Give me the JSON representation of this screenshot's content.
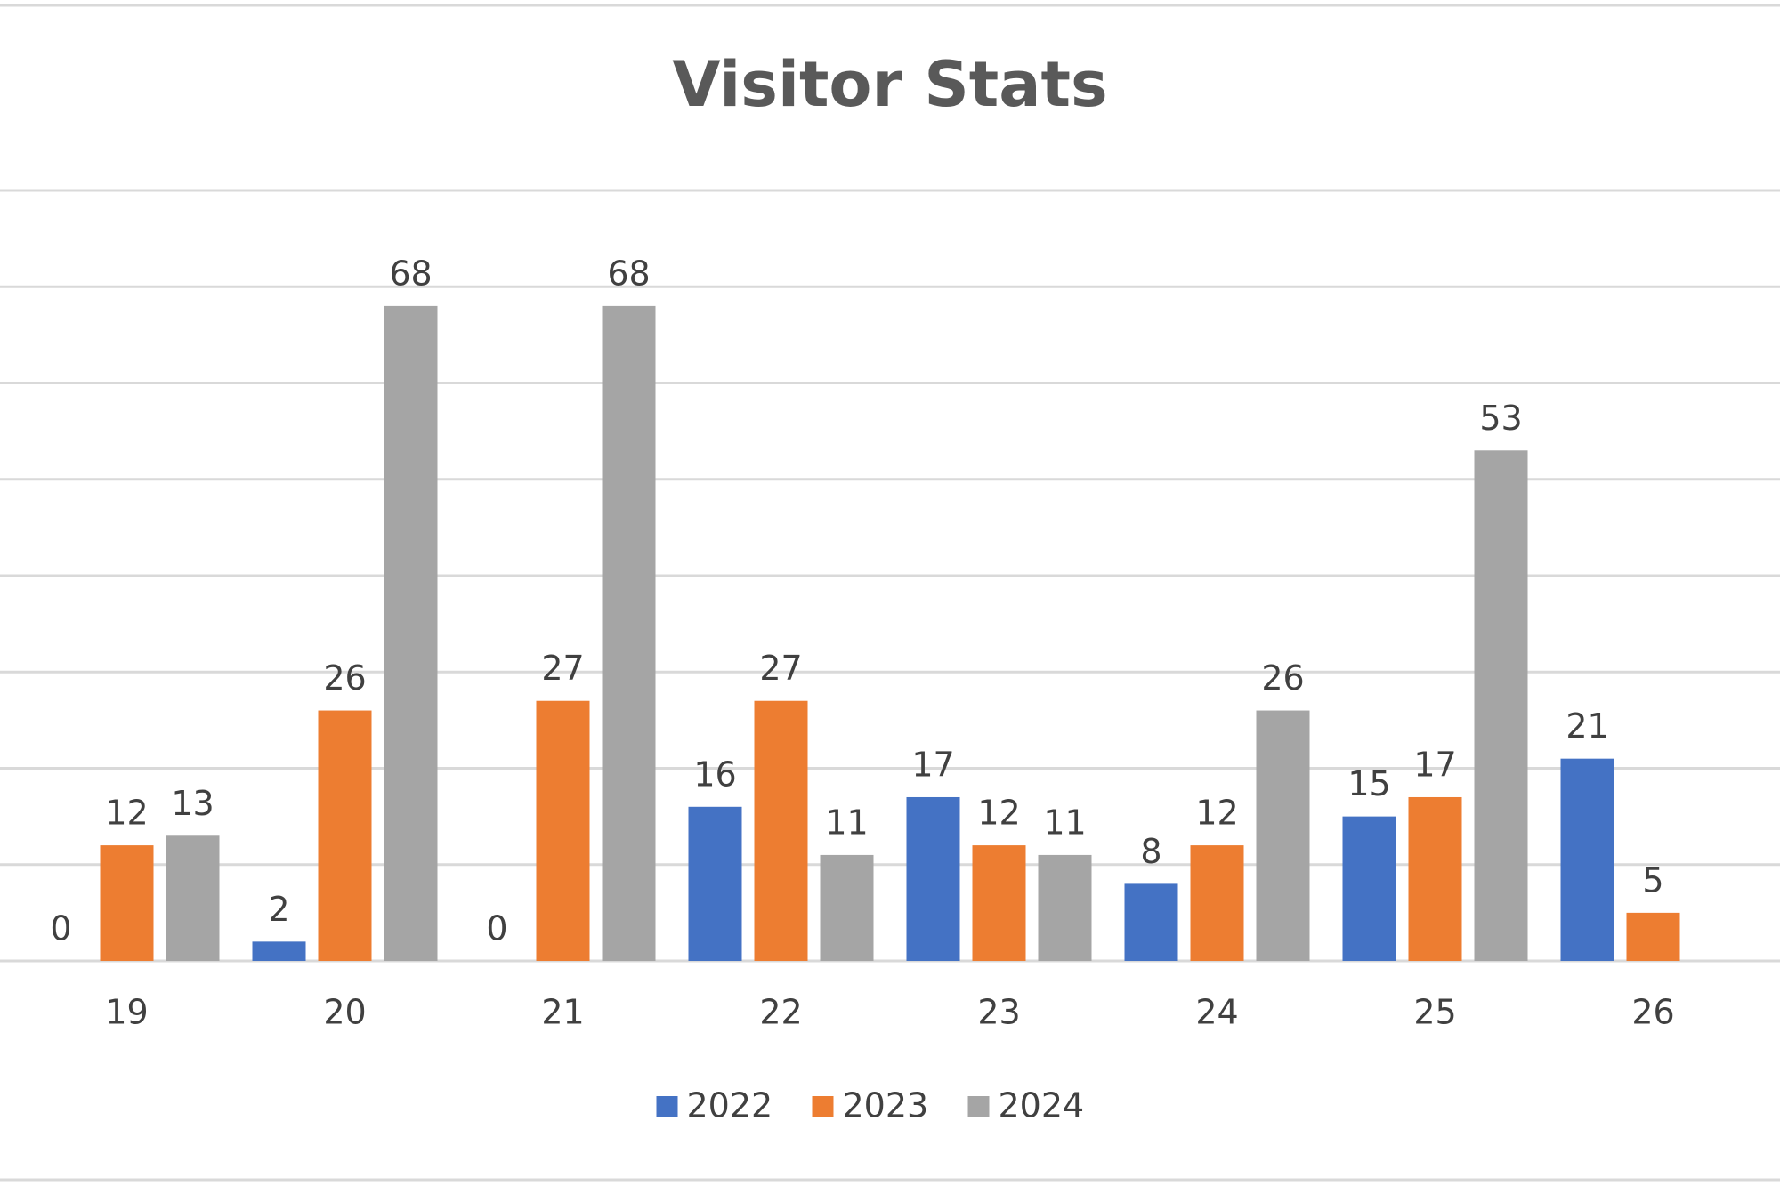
{
  "chart_data": {
    "type": "bar",
    "title": "Visitor Stats",
    "categories": [
      "19",
      "20",
      "21",
      "22",
      "23",
      "24",
      "25",
      "26"
    ],
    "series": [
      {
        "name": "2022",
        "color": "#4472c4",
        "values": [
          0,
          2,
          0,
          16,
          17,
          8,
          15,
          21
        ]
      },
      {
        "name": "2023",
        "color": "#ed7d31",
        "values": [
          12,
          26,
          27,
          27,
          12,
          12,
          17,
          5
        ]
      },
      {
        "name": "2024",
        "color": "#a5a5a5",
        "values": [
          13,
          68,
          68,
          11,
          11,
          26,
          53,
          null
        ]
      }
    ],
    "ylim": [
      0,
      80
    ],
    "yticks": [
      0,
      10,
      20,
      30,
      40,
      50,
      60,
      70,
      80
    ],
    "grid": true,
    "legend": "bottom"
  }
}
